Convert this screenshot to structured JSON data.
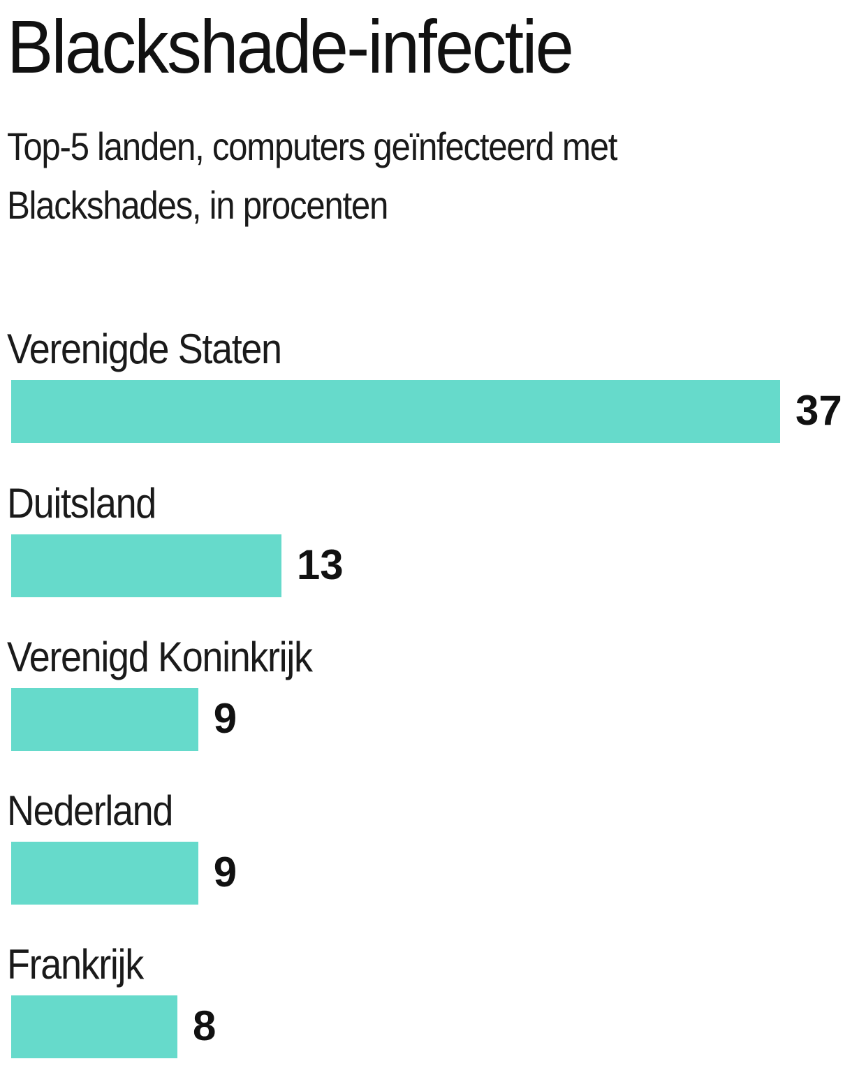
{
  "header": {
    "title": "Blackshade-infectie",
    "subtitle": "Top-5 landen, computers geïnfecteerd met Blackshades, in procenten"
  },
  "style": {
    "bar_color": "#66dacb"
  },
  "chart_data": {
    "type": "bar",
    "orientation": "horizontal",
    "title": "Blackshade-infectie",
    "subtitle": "Top-5 landen, computers geïnfecteerd met Blackshades, in procenten",
    "categories": [
      "Verenigde Staten",
      "Duitsland",
      "Verenigd Koninkrijk",
      "Nederland",
      "Frankrijk"
    ],
    "values": [
      37,
      13,
      9,
      9,
      8
    ],
    "xlabel": "",
    "ylabel": "",
    "unit": "%",
    "data_labels": true,
    "grid": false,
    "legend": null,
    "color": "#66dacb"
  }
}
